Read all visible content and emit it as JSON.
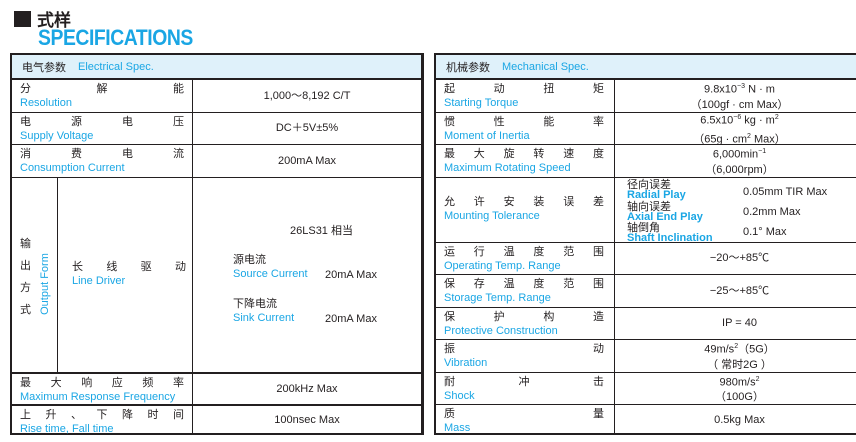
{
  "title": {
    "cn": "式样",
    "en": "SPECIFICATIONS"
  },
  "electrical": {
    "header_cn": "电气参数",
    "header_en": "Electrical Spec.",
    "rows": [
      {
        "cn": "分解能",
        "en": "Resolution",
        "value": "1,000～8,192 C/T"
      },
      {
        "cn": "电源电压",
        "en": "Supply Voltage",
        "value": "DC＋5V±5%"
      },
      {
        "cn": "消费电流",
        "en": "Consumption Current",
        "value": "200mA Max"
      }
    ],
    "output": {
      "cn": "输出方式",
      "en": "Output Form",
      "type_cn": "长线驱动",
      "type_en": "Line Driver",
      "chip": "26LS31 相当",
      "source_cn": "源电流",
      "source_en": "Source Current",
      "source_value": "20mA Max",
      "sink_cn": "下降电流",
      "sink_en": "Sink Current",
      "sink_value": "20mA Max"
    },
    "rows2": [
      {
        "cn": "最大响应频率",
        "en": "Maximum Response Frequency",
        "value": "200kHz Max"
      },
      {
        "cn": "上升、下降时间",
        "en": "Rise time, Fall time",
        "value": "100nsec Max"
      }
    ]
  },
  "mechanical": {
    "header_cn": "机械参数",
    "header_en": "Mechanical Spec.",
    "torque": {
      "cn": "起动扭矩",
      "en": "Starting Torque",
      "v1": "9.8x10",
      "v1_exp": "−3",
      "v1_unit": " N · m",
      "v2": "（100gf · cm Max）"
    },
    "inertia": {
      "cn": "惯性能率",
      "en": "Moment of Inertia",
      "v1": "6.5x10",
      "v1_exp": "−6",
      "v1_unit": " kg · m",
      "v1_exp2": "2",
      "v2a": "（65g · cm",
      "v2_exp": "2",
      "v2b": " Max）"
    },
    "speed": {
      "cn": "最大旋转速度",
      "en": "Maximum Rotating Speed",
      "v1": "6,000min",
      "v1_exp": "−1",
      "v2": "（6,000rpm）"
    },
    "tolerance": {
      "cn": "允许安装误差",
      "en": "Mounting Tolerance",
      "items": [
        {
          "cn": "径向误差",
          "en": "Radial Play",
          "value": "0.05mm TIR Max"
        },
        {
          "cn": "轴向误差",
          "en": "Axial End Play",
          "value": "0.2mm Max"
        },
        {
          "cn": "轴倒角",
          "en": "Shaft Inclination",
          "value": "0.1° Max"
        }
      ]
    },
    "rows": [
      {
        "cn": "运行温度范围",
        "en": "Operating Temp. Range",
        "value": "−20～+85℃"
      },
      {
        "cn": "保存温度范围",
        "en": "Storage Temp. Range",
        "value": "−25～+85℃"
      },
      {
        "cn": "保护构造",
        "en": "Protective Construction",
        "value": "IP = 40"
      }
    ],
    "vibration": {
      "cn": "振动",
      "en": "Vibration",
      "v1": "49m/s",
      "v1_exp": "2",
      "v1_tail": "（5G）",
      "v2": "（ 常时2G ）"
    },
    "shock": {
      "cn": "耐冲击",
      "en": "Shock",
      "v1": "980m/s",
      "v1_exp": "2",
      "v2": "（100G）"
    },
    "mass": {
      "cn": "质量",
      "en": "Mass",
      "value": "0.5kg Max"
    }
  }
}
